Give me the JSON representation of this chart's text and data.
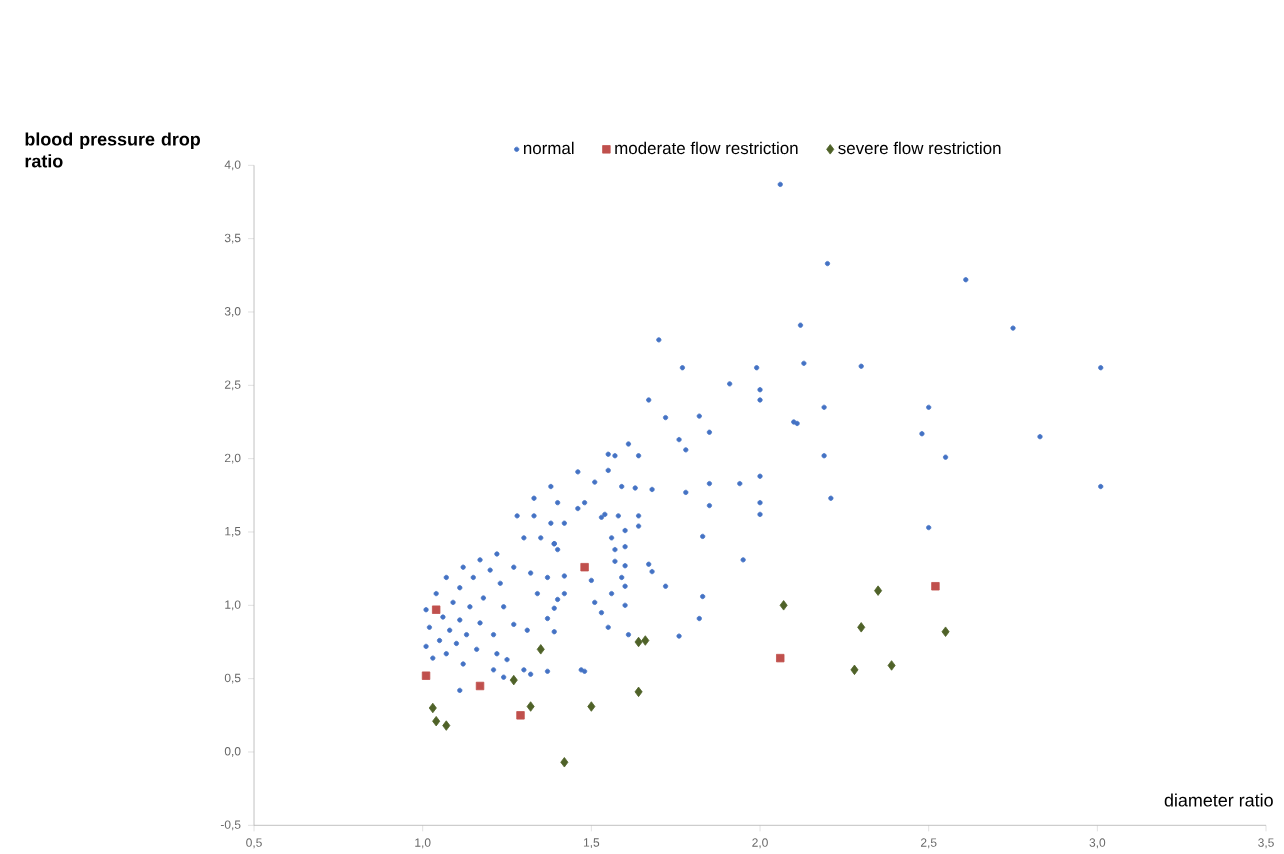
{
  "chart_data": {
    "type": "scatter",
    "xlabel": "diameter ratio",
    "ylabel": "blood pressure drop ratio",
    "legend": "top",
    "grid": false,
    "xlim": [
      0.5,
      3.5
    ],
    "ylim": [
      -0.5,
      4.0
    ],
    "xticks": [
      {
        "value": 0.5,
        "label": "0,5"
      },
      {
        "value": 1.0,
        "label": "1,0"
      },
      {
        "value": 1.5,
        "label": "1,5"
      },
      {
        "value": 2.0,
        "label": "2,0"
      },
      {
        "value": 2.5,
        "label": "2,5"
      },
      {
        "value": 3.0,
        "label": "3,0"
      },
      {
        "value": 3.5,
        "label": "3,5"
      }
    ],
    "yticks": [
      {
        "value": -0.5,
        "label": "-0,5"
      },
      {
        "value": 0.0,
        "label": "0,0"
      },
      {
        "value": 0.5,
        "label": "0,5"
      },
      {
        "value": 1.0,
        "label": "1,0"
      },
      {
        "value": 1.5,
        "label": "1,5"
      },
      {
        "value": 2.0,
        "label": "2,0"
      },
      {
        "value": 2.5,
        "label": "2,5"
      },
      {
        "value": 3.0,
        "label": "3,0"
      },
      {
        "value": 3.5,
        "label": "3,5"
      },
      {
        "value": 4.0,
        "label": "4,0"
      }
    ],
    "series": [
      {
        "name": "normal",
        "color": "#4472c4",
        "marker": "circle",
        "x": [
          2.06,
          2.2,
          2.61,
          2.12,
          2.75,
          1.99,
          2.13,
          2.3,
          3.01,
          2.0,
          2.0,
          2.19,
          2.5,
          2.11,
          2.48,
          2.83,
          2.19,
          2.55,
          2.0,
          3.01,
          2.0,
          2.0,
          2.21,
          2.5,
          1.7,
          1.77,
          1.91,
          1.67,
          2.1,
          1.72,
          1.82,
          1.85,
          1.76,
          1.78,
          1.61,
          1.64,
          1.57,
          1.46,
          1.55,
          1.51,
          1.59,
          1.63,
          1.68,
          1.78,
          1.85,
          1.94,
          1.48,
          1.46,
          1.85,
          1.54,
          1.58,
          1.64,
          1.53,
          1.64,
          1.6,
          1.83,
          1.56,
          1.39,
          1.4,
          1.57,
          1.6,
          1.95,
          1.57,
          1.6,
          1.67,
          1.68,
          1.42,
          1.5,
          1.59,
          1.6,
          1.72,
          1.56,
          1.42,
          1.83,
          1.51,
          1.6,
          1.39,
          1.53,
          1.82,
          1.55,
          1.76,
          1.61,
          1.48,
          1.55,
          1.38,
          1.33,
          1.4,
          1.28,
          1.33,
          1.38,
          1.42,
          1.3,
          1.35,
          1.39,
          1.22,
          1.17,
          1.27,
          1.12,
          1.2,
          1.15,
          1.07,
          1.32,
          1.37,
          1.23,
          1.11,
          1.04,
          1.18,
          1.34,
          1.4,
          1.09,
          1.14,
          1.24,
          1.01,
          1.06,
          1.11,
          1.17,
          1.27,
          1.37,
          1.02,
          1.08,
          1.13,
          1.21,
          1.31,
          1.39,
          1.05,
          1.1,
          1.01,
          1.16,
          1.22,
          1.07,
          1.03,
          1.25,
          1.12,
          1.21,
          1.3,
          1.37,
          1.47,
          1.24,
          1.11,
          1.32
        ],
        "values": [
          3.87,
          3.33,
          3.22,
          2.91,
          2.89,
          2.62,
          2.65,
          2.63,
          2.62,
          2.47,
          2.4,
          2.35,
          2.35,
          2.24,
          2.17,
          2.15,
          2.02,
          2.01,
          1.88,
          1.81,
          1.7,
          1.62,
          1.73,
          1.53,
          2.81,
          2.62,
          2.51,
          2.4,
          2.25,
          2.28,
          2.29,
          2.18,
          2.13,
          2.06,
          2.1,
          2.02,
          2.02,
          1.91,
          1.92,
          1.84,
          1.81,
          1.8,
          1.79,
          1.77,
          1.83,
          1.83,
          1.7,
          1.66,
          1.68,
          1.62,
          1.61,
          1.61,
          1.6,
          1.54,
          1.51,
          1.47,
          1.46,
          1.42,
          1.38,
          1.38,
          1.4,
          1.31,
          1.3,
          1.27,
          1.28,
          1.23,
          1.2,
          1.17,
          1.19,
          1.13,
          1.13,
          1.08,
          1.08,
          1.06,
          1.02,
          1.0,
          0.98,
          0.95,
          0.91,
          0.85,
          0.79,
          0.8,
          0.55,
          2.03,
          1.81,
          1.73,
          1.7,
          1.61,
          1.61,
          1.56,
          1.56,
          1.46,
          1.46,
          1.42,
          1.35,
          1.31,
          1.26,
          1.26,
          1.24,
          1.19,
          1.19,
          1.22,
          1.19,
          1.15,
          1.12,
          1.08,
          1.05,
          1.08,
          1.04,
          1.02,
          0.99,
          0.99,
          0.97,
          0.92,
          0.9,
          0.88,
          0.87,
          0.91,
          0.85,
          0.83,
          0.8,
          0.8,
          0.83,
          0.82,
          0.76,
          0.74,
          0.72,
          0.7,
          0.67,
          0.67,
          0.64,
          0.63,
          0.6,
          0.56,
          0.56,
          0.55,
          0.56,
          0.51,
          0.42,
          0.53
        ]
      },
      {
        "name": "moderate flow restriction",
        "color": "#c0504d",
        "marker": "square",
        "x": [
          1.01,
          1.04,
          1.17,
          1.29,
          1.48,
          2.06,
          2.52
        ],
        "values": [
          0.52,
          0.97,
          0.45,
          0.25,
          1.26,
          0.64,
          1.13
        ]
      },
      {
        "name": "severe flow restriction",
        "color": "#4f6228",
        "marker": "diamond",
        "x": [
          1.03,
          1.04,
          1.07,
          1.27,
          1.32,
          1.35,
          1.42,
          1.5,
          1.64,
          1.66,
          1.64,
          2.07,
          2.35,
          2.3,
          2.55,
          2.28,
          2.39
        ],
        "values": [
          0.3,
          0.21,
          0.18,
          0.49,
          0.31,
          0.7,
          -0.07,
          0.31,
          0.75,
          0.76,
          0.41,
          1.0,
          1.1,
          0.85,
          0.82,
          0.56,
          0.59
        ]
      }
    ]
  }
}
